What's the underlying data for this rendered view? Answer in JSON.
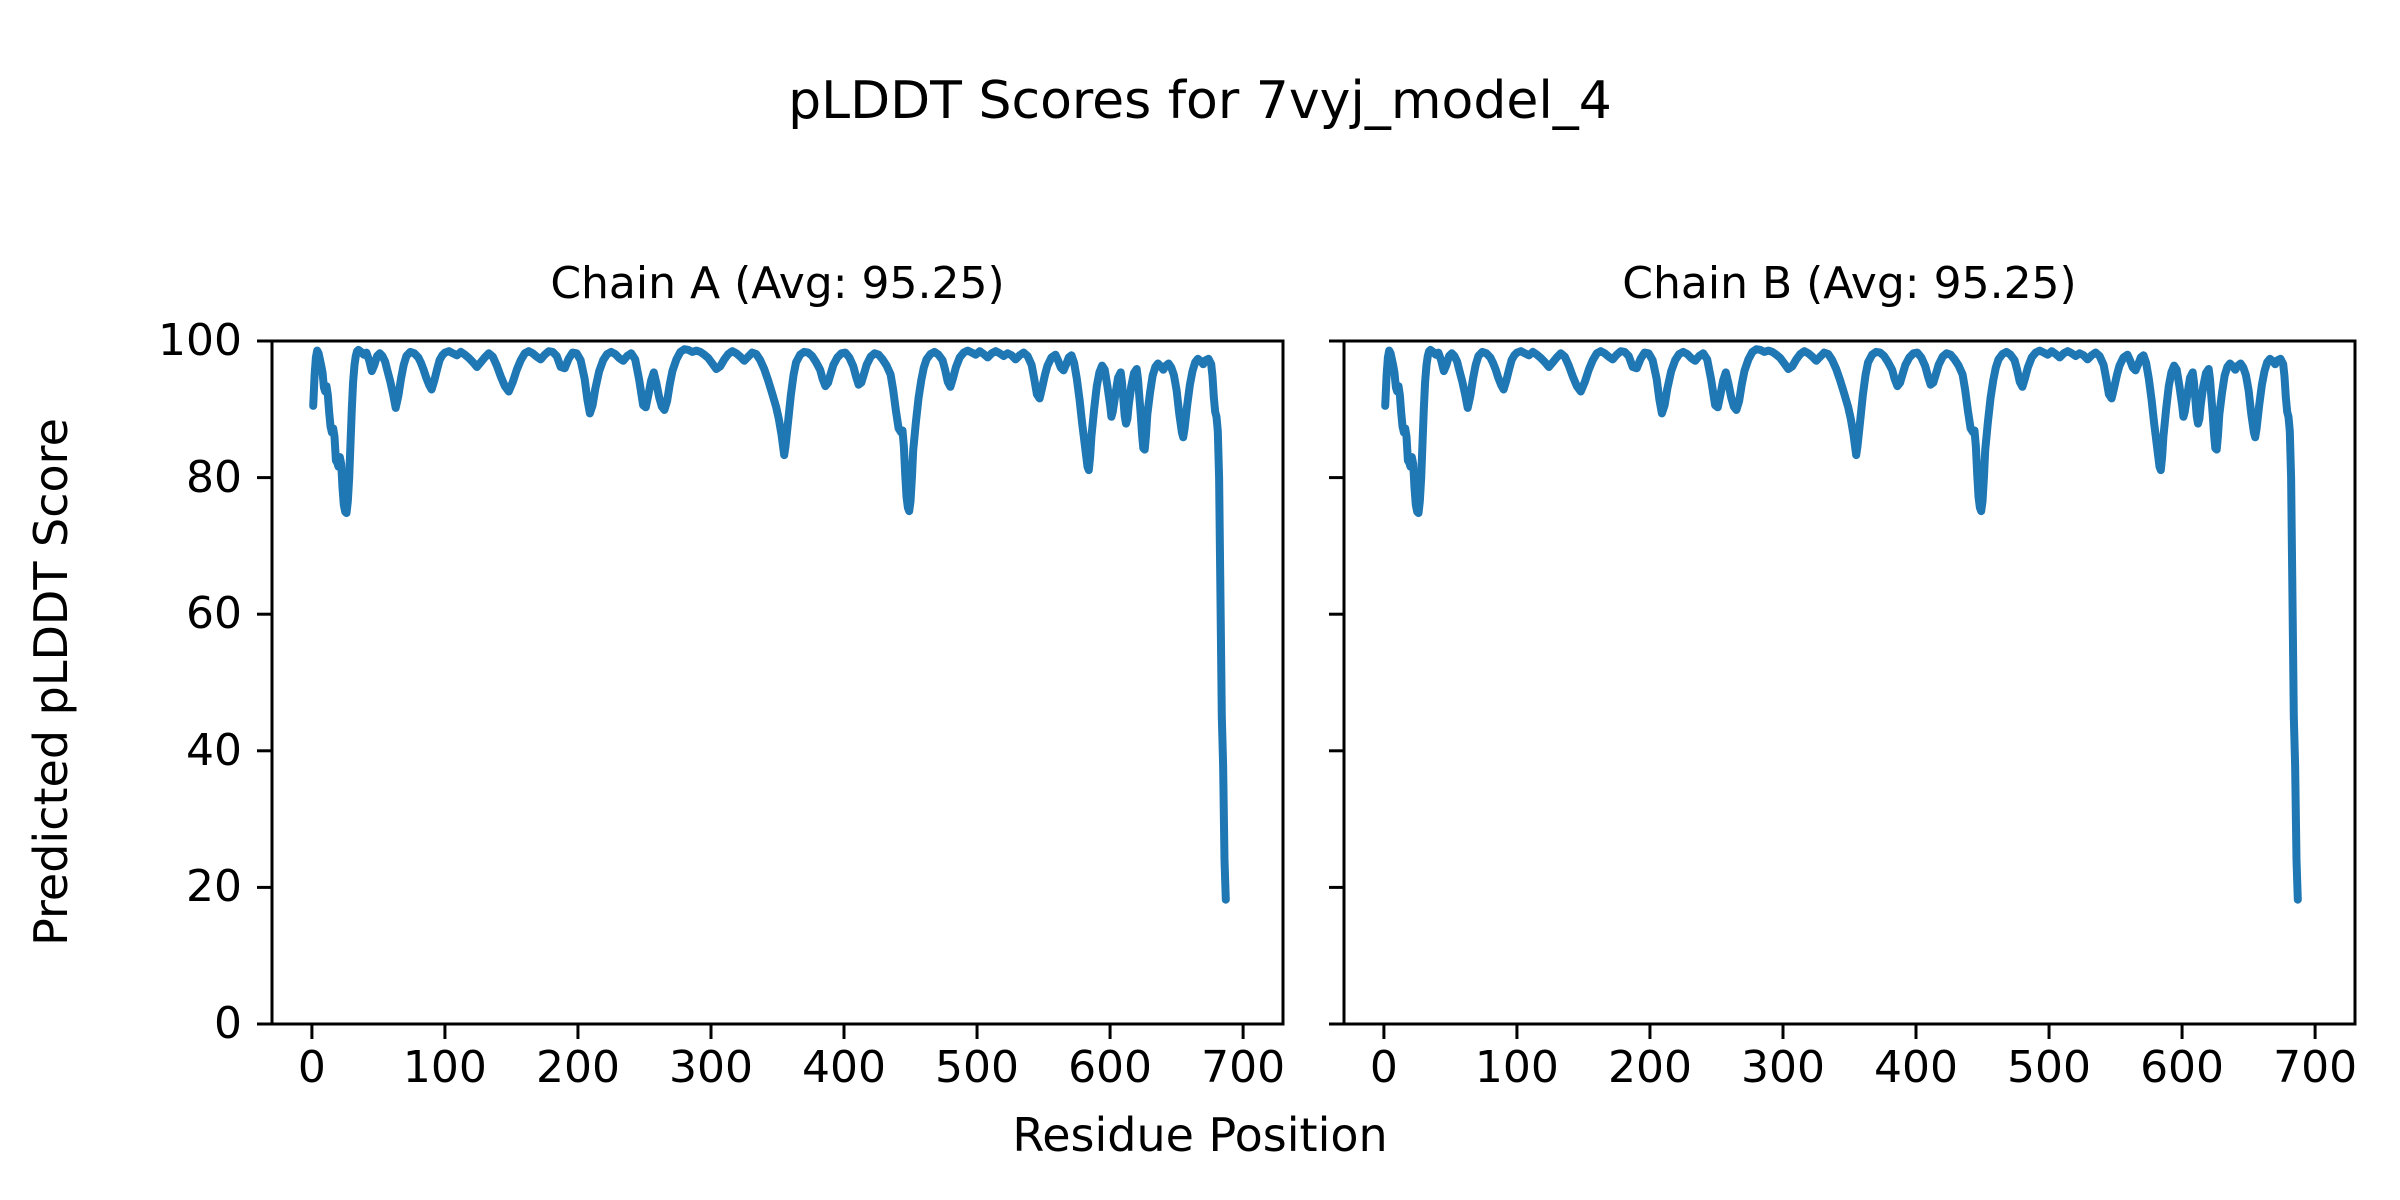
{
  "figure": {
    "suptitle": "pLDDT Scores for 7vyj_model_4",
    "background": "#ffffff",
    "text_color": "#000000"
  },
  "chart_data": {
    "type": "line",
    "suptitle": "pLDDT Scores for 7vyj_model_4",
    "xlabel": "Residue Position",
    "ylabel": "Predicted pLDDT Score",
    "grid": false,
    "legend": "none",
    "line_color": "#1f77b4",
    "axis_color": "#000000",
    "xlim": [
      -30,
      730
    ],
    "ylim": [
      0,
      100
    ],
    "xticks": [
      0,
      100,
      200,
      300,
      400,
      500,
      600,
      700
    ],
    "yticks": [
      0,
      20,
      40,
      60,
      80,
      100
    ],
    "subplots": [
      {
        "id": "chain_a",
        "title": "Chain A (Avg: 95.25)",
        "avg": 95.25,
        "y_tick_labels_shown": true
      },
      {
        "id": "chain_b",
        "title": "Chain B (Avg: 95.25)",
        "avg": 95.25,
        "y_tick_labels_shown": false
      }
    ],
    "points_note": "Single shared pLDDT trace; Chain A and Chain B traces are visually identical. Points are [residue, score] samples read from the plot.",
    "points_apply_to": [
      "chain_a",
      "chain_b"
    ],
    "points": [
      [
        1,
        90.5
      ],
      [
        2,
        95
      ],
      [
        3,
        97.6
      ],
      [
        4,
        98.6
      ],
      [
        5,
        98.2
      ],
      [
        6,
        97.3
      ],
      [
        7,
        96.4
      ],
      [
        8,
        95.3
      ],
      [
        9,
        93.2
      ],
      [
        10,
        92.6
      ],
      [
        11,
        93.4
      ],
      [
        12,
        92
      ],
      [
        13,
        89.5
      ],
      [
        14,
        87.5
      ],
      [
        15,
        86.6
      ],
      [
        16,
        87.2
      ],
      [
        17,
        86
      ],
      [
        18,
        82.5
      ],
      [
        19,
        82.2
      ],
      [
        20,
        81.6
      ],
      [
        21,
        83
      ],
      [
        22,
        82
      ],
      [
        23,
        78.5
      ],
      [
        24,
        76
      ],
      [
        25,
        75
      ],
      [
        26,
        74.8
      ],
      [
        27,
        76.5
      ],
      [
        28,
        80
      ],
      [
        29,
        85
      ],
      [
        30,
        90
      ],
      [
        31,
        94
      ],
      [
        32,
        96.5
      ],
      [
        33,
        97.8
      ],
      [
        34,
        98.5
      ],
      [
        35,
        98.7
      ],
      [
        37,
        98.4
      ],
      [
        39,
        98
      ],
      [
        41,
        98.3
      ],
      [
        43,
        97.2
      ],
      [
        45,
        95.6
      ],
      [
        47,
        96.5
      ],
      [
        49,
        97.8
      ],
      [
        51,
        98.2
      ],
      [
        53,
        97.8
      ],
      [
        55,
        97
      ],
      [
        57,
        95.5
      ],
      [
        59,
        94
      ],
      [
        61,
        92.2
      ],
      [
        63,
        90.2
      ],
      [
        65,
        92
      ],
      [
        67,
        94.5
      ],
      [
        69,
        96.5
      ],
      [
        71,
        97.8
      ],
      [
        74,
        98.4
      ],
      [
        77,
        98.2
      ],
      [
        80,
        97.6
      ],
      [
        82,
        96.8
      ],
      [
        84,
        95.8
      ],
      [
        86,
        94.6
      ],
      [
        88,
        93.6
      ],
      [
        90,
        92.9
      ],
      [
        92,
        94.2
      ],
      [
        94,
        95.8
      ],
      [
        96,
        97.2
      ],
      [
        98,
        97.9
      ],
      [
        100,
        98.3
      ],
      [
        103,
        98.5
      ],
      [
        106,
        98.2
      ],
      [
        109,
        97.9
      ],
      [
        112,
        98.4
      ],
      [
        115,
        98
      ],
      [
        118,
        97.5
      ],
      [
        121,
        96.9
      ],
      [
        124,
        96.2
      ],
      [
        127,
        96.9
      ],
      [
        130,
        97.6
      ],
      [
        133,
        98.2
      ],
      [
        136,
        97.7
      ],
      [
        139,
        96.4
      ],
      [
        142,
        94.8
      ],
      [
        145,
        93.4
      ],
      [
        148,
        92.6
      ],
      [
        151,
        94
      ],
      [
        154,
        95.8
      ],
      [
        157,
        97.2
      ],
      [
        160,
        98.2
      ],
      [
        163,
        98.5
      ],
      [
        166,
        98.2
      ],
      [
        169,
        97.7
      ],
      [
        172,
        97.3
      ],
      [
        175,
        98
      ],
      [
        178,
        98.5
      ],
      [
        181,
        98.4
      ],
      [
        184,
        97.8
      ],
      [
        187,
        96.2
      ],
      [
        190,
        96
      ],
      [
        193,
        97.4
      ],
      [
        196,
        98.3
      ],
      [
        199,
        98.2
      ],
      [
        202,
        97.2
      ],
      [
        205,
        94.5
      ],
      [
        207,
        91.5
      ],
      [
        209,
        89.4
      ],
      [
        211,
        90.6
      ],
      [
        213,
        93
      ],
      [
        216,
        95.6
      ],
      [
        219,
        97.2
      ],
      [
        222,
        98.1
      ],
      [
        225,
        98.4
      ],
      [
        228,
        98.1
      ],
      [
        231,
        97.5
      ],
      [
        234,
        97.1
      ],
      [
        237,
        97.8
      ],
      [
        240,
        98.2
      ],
      [
        243,
        97.3
      ],
      [
        246,
        94.3
      ],
      [
        249,
        90.6
      ],
      [
        251,
        90.3
      ],
      [
        253,
        92.2
      ],
      [
        255,
        94.2
      ],
      [
        257,
        95.4
      ],
      [
        259,
        93.8
      ],
      [
        261,
        91.8
      ],
      [
        263,
        90.4
      ],
      [
        265,
        89.9
      ],
      [
        267,
        91.2
      ],
      [
        269,
        93.6
      ],
      [
        271,
        95.6
      ],
      [
        274,
        97.3
      ],
      [
        277,
        98.4
      ],
      [
        280,
        98.8
      ],
      [
        283,
        98.7
      ],
      [
        286,
        98.4
      ],
      [
        289,
        98.6
      ],
      [
        292,
        98.4
      ],
      [
        295,
        98
      ],
      [
        298,
        97.5
      ],
      [
        301,
        96.7
      ],
      [
        304,
        95.9
      ],
      [
        307,
        96.3
      ],
      [
        310,
        97.3
      ],
      [
        313,
        98.1
      ],
      [
        316,
        98.5
      ],
      [
        319,
        98.2
      ],
      [
        322,
        97.7
      ],
      [
        325,
        97.1
      ],
      [
        328,
        97.7
      ],
      [
        331,
        98.3
      ],
      [
        334,
        98.1
      ],
      [
        337,
        97.2
      ],
      [
        340,
        95.9
      ],
      [
        343,
        94.2
      ],
      [
        346,
        92.3
      ],
      [
        349,
        90.3
      ],
      [
        351,
        88.6
      ],
      [
        353,
        86.3
      ],
      [
        355,
        83.3
      ],
      [
        356,
        84.6
      ],
      [
        358,
        88.2
      ],
      [
        360,
        92
      ],
      [
        362,
        95
      ],
      [
        364,
        96.9
      ],
      [
        367,
        98
      ],
      [
        370,
        98.4
      ],
      [
        373,
        98.3
      ],
      [
        376,
        97.8
      ],
      [
        379,
        96.9
      ],
      [
        382,
        95.8
      ],
      [
        384,
        94.4
      ],
      [
        386,
        93.4
      ],
      [
        388,
        93.9
      ],
      [
        390,
        95.2
      ],
      [
        392,
        96.5
      ],
      [
        395,
        97.6
      ],
      [
        398,
        98.2
      ],
      [
        401,
        98.3
      ],
      [
        404,
        97.6
      ],
      [
        407,
        96.3
      ],
      [
        409,
        94.8
      ],
      [
        411,
        93.6
      ],
      [
        413,
        93.9
      ],
      [
        415,
        95.2
      ],
      [
        417,
        96.5
      ],
      [
        420,
        97.7
      ],
      [
        423,
        98.2
      ],
      [
        426,
        98
      ],
      [
        429,
        97.3
      ],
      [
        432,
        96.4
      ],
      [
        435,
        95.1
      ],
      [
        437,
        92.8
      ],
      [
        439,
        89.8
      ],
      [
        441,
        87.2
      ],
      [
        443,
        86.6
      ],
      [
        444,
        86.9
      ],
      [
        445,
        84.5
      ],
      [
        446,
        80.5
      ],
      [
        447,
        77.2
      ],
      [
        448,
        75.6
      ],
      [
        449,
        75.1
      ],
      [
        450,
        76.5
      ],
      [
        451,
        80
      ],
      [
        452,
        84
      ],
      [
        454,
        88
      ],
      [
        456,
        91.6
      ],
      [
        458,
        94.2
      ],
      [
        460,
        96.1
      ],
      [
        462,
        97.3
      ],
      [
        465,
        98.1
      ],
      [
        468,
        98.4
      ],
      [
        471,
        98
      ],
      [
        474,
        97.2
      ],
      [
        476,
        95.8
      ],
      [
        478,
        94
      ],
      [
        480,
        93.3
      ],
      [
        482,
        94.6
      ],
      [
        484,
        96.1
      ],
      [
        487,
        97.6
      ],
      [
        490,
        98.3
      ],
      [
        493,
        98.6
      ],
      [
        496,
        98.3
      ],
      [
        499,
        98
      ],
      [
        502,
        98.5
      ],
      [
        505,
        98.1
      ],
      [
        508,
        97.6
      ],
      [
        511,
        98.2
      ],
      [
        514,
        98.5
      ],
      [
        517,
        98.2
      ],
      [
        520,
        97.8
      ],
      [
        523,
        98.2
      ],
      [
        526,
        97.9
      ],
      [
        529,
        97.3
      ],
      [
        532,
        97.9
      ],
      [
        535,
        98.3
      ],
      [
        538,
        97.8
      ],
      [
        541,
        96.5
      ],
      [
        543,
        94.5
      ],
      [
        545,
        92.2
      ],
      [
        547,
        91.6
      ],
      [
        549,
        93.2
      ],
      [
        551,
        95
      ],
      [
        553,
        96.4
      ],
      [
        556,
        97.6
      ],
      [
        559,
        98
      ],
      [
        561,
        97.1
      ],
      [
        563,
        96.1
      ],
      [
        565,
        95.7
      ],
      [
        567,
        96.6
      ],
      [
        569,
        97.6
      ],
      [
        571,
        97.9
      ],
      [
        573,
        96.8
      ],
      [
        575,
        94.5
      ],
      [
        577,
        91.5
      ],
      [
        579,
        88
      ],
      [
        581,
        84.8
      ],
      [
        583,
        81.6
      ],
      [
        584,
        81.1
      ],
      [
        585,
        83
      ],
      [
        586,
        86
      ],
      [
        588,
        90
      ],
      [
        590,
        93.4
      ],
      [
        592,
        95.4
      ],
      [
        594,
        96.4
      ],
      [
        596,
        95.8
      ],
      [
        598,
        93.4
      ],
      [
        600,
        90.6
      ],
      [
        601,
        88.9
      ],
      [
        602,
        89.6
      ],
      [
        604,
        92.2
      ],
      [
        606,
        94.6
      ],
      [
        608,
        95.4
      ],
      [
        609,
        93.9
      ],
      [
        610,
        91.4
      ],
      [
        611,
        89
      ],
      [
        612,
        87.9
      ],
      [
        613,
        88.6
      ],
      [
        614,
        90.6
      ],
      [
        616,
        93.4
      ],
      [
        618,
        95.3
      ],
      [
        620,
        95.9
      ],
      [
        621,
        94.4
      ],
      [
        622,
        91.9
      ],
      [
        623,
        89.3
      ],
      [
        624,
        86.4
      ],
      [
        625,
        84.3
      ],
      [
        626,
        84.1
      ],
      [
        627,
        86.2
      ],
      [
        628,
        89.2
      ],
      [
        630,
        92.4
      ],
      [
        632,
        94.9
      ],
      [
        634,
        96.2
      ],
      [
        636,
        96.7
      ],
      [
        638,
        96.3
      ],
      [
        640,
        95.8
      ],
      [
        642,
        96.4
      ],
      [
        644,
        96.7
      ],
      [
        646,
        96.1
      ],
      [
        648,
        95
      ],
      [
        650,
        92.8
      ],
      [
        652,
        89.4
      ],
      [
        654,
        86.6
      ],
      [
        655,
        85.9
      ],
      [
        656,
        87.2
      ],
      [
        658,
        90.6
      ],
      [
        660,
        93.6
      ],
      [
        662,
        95.6
      ],
      [
        664,
        96.9
      ],
      [
        666,
        97.4
      ],
      [
        668,
        97.1
      ],
      [
        670,
        96.6
      ],
      [
        672,
        97.2
      ],
      [
        674,
        97.4
      ],
      [
        676,
        96.6
      ],
      [
        677,
        94.8
      ],
      [
        678,
        91.8
      ],
      [
        679,
        89.6
      ],
      [
        680,
        88.9
      ],
      [
        681,
        86.8
      ],
      [
        682,
        80
      ],
      [
        683,
        62
      ],
      [
        684,
        45
      ],
      [
        685,
        38
      ],
      [
        686,
        24
      ],
      [
        687,
        18.2
      ]
    ]
  }
}
